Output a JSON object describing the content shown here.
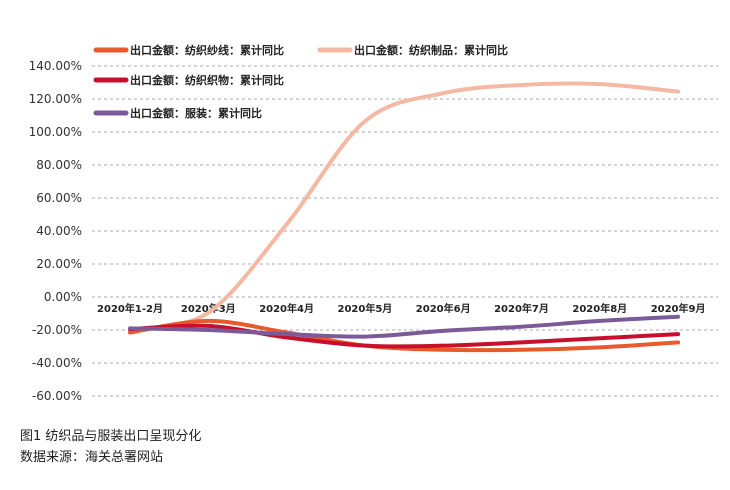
{
  "chart_data": {
    "type": "line",
    "categories": [
      "2020年1-2月",
      "2020年3月",
      "2020年4月",
      "2020年5月",
      "2020年6月",
      "2020年7月",
      "2020年8月",
      "2020年9月"
    ],
    "yticks": [
      "140.00%",
      "120.00%",
      "100.00%",
      "80.00%",
      "60.00%",
      "40.00%",
      "20.00%",
      "0.00%",
      "-20.00%",
      "-40.00%",
      "-60.00%"
    ],
    "ylim": [
      -60,
      140
    ],
    "grid": "horizontal-dashed",
    "legend_position": "top-left",
    "series": [
      {
        "name": "出口金额：纺织纱线：累计同比",
        "color": "#e8592c",
        "values": [
          -21.5,
          -14.5,
          -21.5,
          -29.5,
          -32,
          -32,
          -30.5,
          -27.5
        ]
      },
      {
        "name": "出口金额：纺织制品：累计同比",
        "color": "#f5b8a3",
        "values": [
          -20,
          -9.5,
          44,
          106.5,
          123.5,
          128.5,
          129,
          124.5
        ]
      },
      {
        "name": "出口金额：纺织织物：累计同比",
        "color": "#c8102e",
        "values": [
          -19.5,
          -17.5,
          -24.5,
          -29.5,
          -29.5,
          -27.5,
          -25,
          -22.5
        ]
      },
      {
        "name": "出口金额：服装：累计同比",
        "color": "#7b5a9a",
        "values": [
          -19,
          -20,
          -22.5,
          -24,
          -20.5,
          -18,
          -14.5,
          -12
        ]
      }
    ]
  },
  "caption": {
    "figure": "图1 纺织品与服装出口呈现分化",
    "source": "数据来源：海关总署网站"
  }
}
